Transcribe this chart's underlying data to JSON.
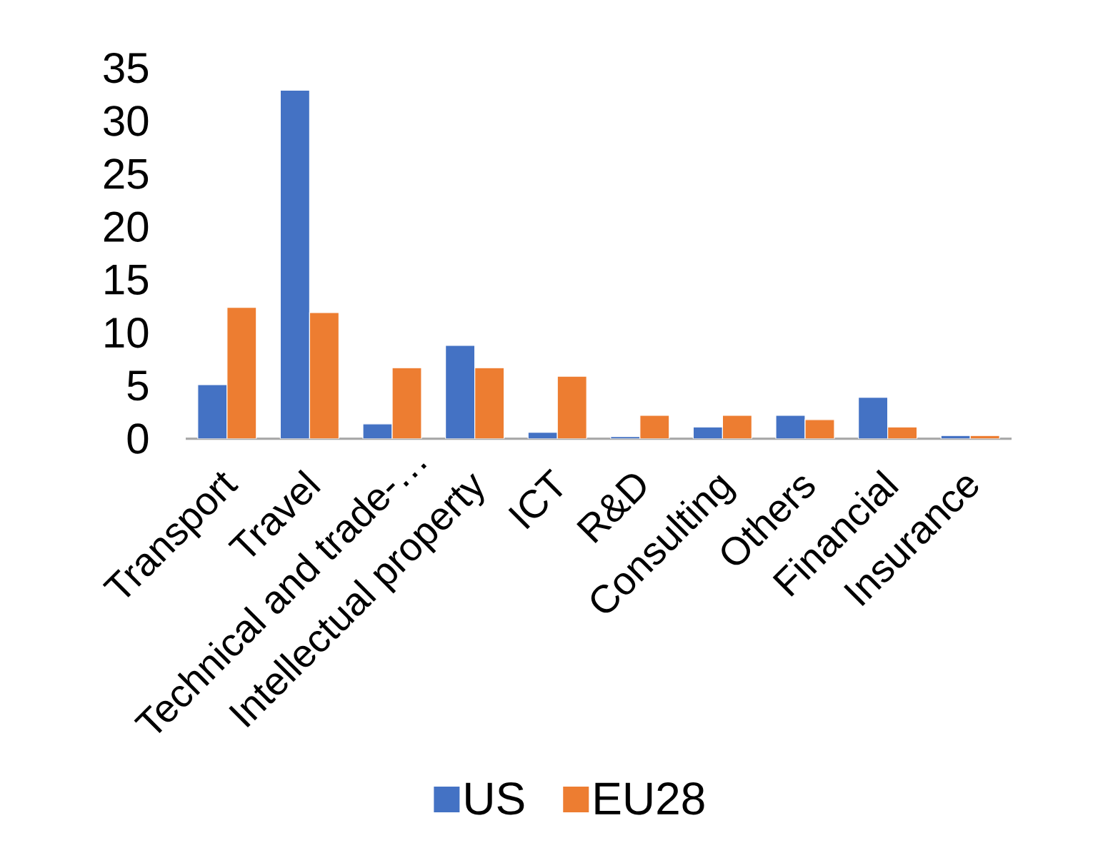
{
  "chart_data": {
    "type": "bar",
    "categories": [
      "Transport",
      "Travel",
      "Technical and trade-…",
      "Intellectual property",
      "ICT",
      "R&D",
      "Consulting",
      "Others",
      "Financial",
      "Insurance"
    ],
    "series": [
      {
        "name": "US",
        "color": "#4472c4",
        "values": [
          5.1,
          32.9,
          1.4,
          8.8,
          0.6,
          0.2,
          1.1,
          2.2,
          3.9,
          0.3
        ]
      },
      {
        "name": "EU28",
        "color": "#ed7d31",
        "values": [
          12.4,
          11.9,
          6.7,
          6.7,
          5.9,
          2.2,
          2.2,
          1.8,
          1.1,
          0.3
        ]
      }
    ],
    "ylim": [
      0,
      35
    ],
    "yticks": [
      0,
      5,
      10,
      15,
      20,
      25,
      30,
      35
    ],
    "grid": false,
    "legend": "bottom"
  }
}
